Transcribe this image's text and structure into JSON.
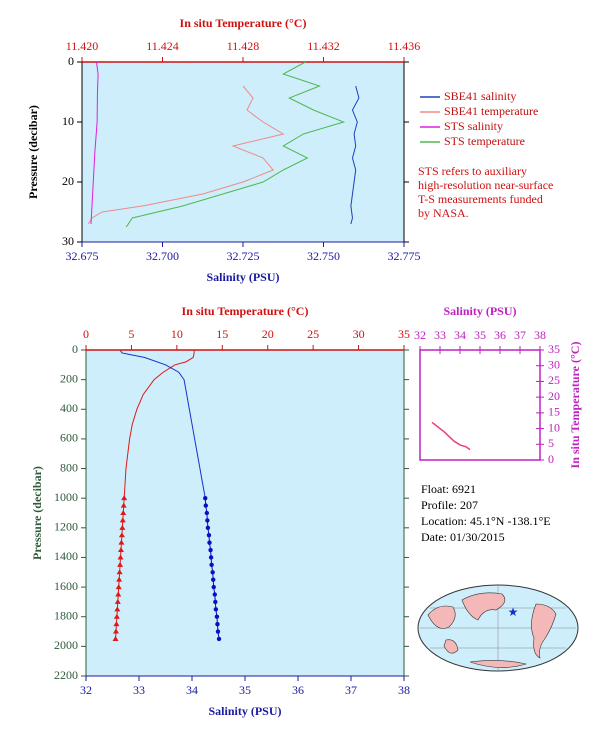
{
  "chart_data": [
    {
      "type": "profile",
      "ylabel": "Pressure (decibar)",
      "xlabel": "Salinity (PSU)",
      "x2label": "In situ Temperature (°C)",
      "xlim": [
        32.675,
        32.775
      ],
      "xticks": [
        32.675,
        {
          "value": 32.7,
          "label": "32.700"
        },
        32.725,
        {
          "value": 32.75,
          "label": "32.750"
        },
        32.775
      ],
      "x2lim": [
        11.42,
        11.436
      ],
      "x2ticks": [
        {
          "value": 11.42,
          "label": "11.420"
        },
        11.424,
        11.428,
        11.432,
        11.436
      ],
      "ylim": [
        0,
        30
      ],
      "yticks": [
        0,
        10,
        20,
        30
      ],
      "y_inverted": true,
      "xcolor": "#1a1aa0",
      "x2color": "#d01010",
      "ycolor": "#000000",
      "background": "#cdeefa",
      "series": [
        {
          "name": "SBE41 salinity",
          "color": "#2040c0",
          "axis": "x",
          "pressure": [
            4,
            6,
            8,
            10,
            12,
            14,
            16,
            18,
            20,
            22,
            24,
            26,
            27
          ],
          "values": [
            32.76,
            32.761,
            32.759,
            32.7605,
            32.7595,
            32.76,
            32.759,
            32.76,
            32.7595,
            32.759,
            32.7585,
            32.759,
            32.7585
          ]
        },
        {
          "name": "SBE41 temperature",
          "color": "#f08a8a",
          "axis": "x2",
          "pressure": [
            4,
            6,
            8,
            10,
            12,
            14,
            16,
            18,
            20,
            22,
            24,
            25,
            26,
            27
          ],
          "values": [
            11.428,
            11.4285,
            11.4282,
            11.429,
            11.43,
            11.4275,
            11.429,
            11.4295,
            11.428,
            11.426,
            11.423,
            11.421,
            11.4205,
            11.4203
          ]
        },
        {
          "name": "STS salinity",
          "color": "#e020e0",
          "axis": "x",
          "pressure": [
            0,
            2,
            5,
            10,
            15,
            20,
            25,
            27
          ],
          "values": [
            32.6795,
            32.68,
            32.6798,
            32.6797,
            32.679,
            32.6785,
            32.678,
            32.6778
          ]
        },
        {
          "name": "STS temperature",
          "color": "#50b850",
          "axis": "x2",
          "pressure": [
            0,
            2,
            4,
            6,
            8,
            10,
            12,
            14,
            16,
            18,
            20,
            22,
            24,
            26,
            27.5
          ],
          "values": [
            11.4311,
            11.43,
            11.4318,
            11.4303,
            11.4315,
            11.433,
            11.431,
            11.43,
            11.4312,
            11.43,
            11.429,
            11.427,
            11.425,
            11.4225,
            11.4222
          ]
        }
      ],
      "note": [
        "STS refers to auxiliary",
        "high-resolution near-surface",
        "T-S measurements funded",
        "by NASA."
      ]
    },
    {
      "type": "profile",
      "ylabel": "Pressure (decibar)",
      "xlabel": "Salinity (PSU)",
      "x2label": "In situ Temperature (°C)",
      "xlim": [
        32,
        38
      ],
      "xticks": [
        32,
        33,
        34,
        35,
        36,
        37,
        38
      ],
      "x2lim": [
        0,
        35
      ],
      "x2ticks": [
        0,
        5,
        10,
        15,
        20,
        25,
        30,
        35
      ],
      "ylim": [
        0,
        2200
      ],
      "yticks": [
        0,
        200,
        400,
        600,
        800,
        1000,
        1200,
        1400,
        1600,
        1800,
        2000,
        2200
      ],
      "y_inverted": true,
      "xcolor": "#1a1aa0",
      "x2color": "#d01010",
      "ycolor": "#2f5a3a",
      "background": "#cdeefa",
      "series": [
        {
          "color": "#e01818",
          "axis": "x2",
          "pressure": [
            0,
            20,
            50,
            80,
            100,
            150,
            200,
            300,
            400,
            500,
            600,
            700,
            800,
            900,
            1000
          ],
          "values": [
            11.9,
            11.9,
            11.8,
            11,
            9.8,
            8.5,
            7.5,
            6.3,
            5.6,
            5.1,
            4.8,
            4.6,
            4.4,
            4.3,
            4.2
          ]
        },
        {
          "color": "#e01818",
          "axis": "x2",
          "marker": "triangle",
          "pressure": [
            1000,
            1050,
            1100,
            1150,
            1200,
            1250,
            1300,
            1350,
            1400,
            1450,
            1500,
            1550,
            1600,
            1650,
            1700,
            1750,
            1800,
            1850,
            1900,
            1950
          ],
          "values": [
            4.2,
            4.15,
            4.1,
            4.05,
            4.0,
            3.95,
            3.9,
            3.85,
            3.8,
            3.75,
            3.7,
            3.65,
            3.6,
            3.55,
            3.5,
            3.45,
            3.4,
            3.35,
            3.3,
            3.25
          ]
        },
        {
          "color": "#1830d0",
          "axis": "x",
          "pressure": [
            5,
            20,
            50,
            100,
            150,
            200,
            300,
            400,
            500,
            600,
            700,
            800,
            900,
            1000
          ],
          "values": [
            32.65,
            32.68,
            33.1,
            33.5,
            33.75,
            33.85,
            33.9,
            33.95,
            34.0,
            34.05,
            34.1,
            34.15,
            34.2,
            34.25
          ]
        },
        {
          "color": "#0a10c0",
          "axis": "x",
          "marker": "dot",
          "pressure": [
            1000,
            1050,
            1100,
            1150,
            1200,
            1250,
            1300,
            1350,
            1400,
            1450,
            1500,
            1550,
            1600,
            1650,
            1700,
            1750,
            1800,
            1850,
            1900,
            1950
          ],
          "values": [
            34.25,
            34.26,
            34.28,
            34.29,
            34.3,
            34.32,
            34.33,
            34.35,
            34.36,
            34.37,
            34.39,
            34.4,
            34.41,
            34.43,
            34.44,
            34.45,
            34.47,
            34.48,
            34.49,
            34.51
          ]
        }
      ]
    },
    {
      "type": "line",
      "xlabel": "Salinity (PSU)",
      "ylabel": "In situ Temperature (°C)",
      "xlim": [
        32,
        38
      ],
      "xticks": [
        32,
        33,
        34,
        35,
        36,
        37,
        38
      ],
      "x_axis_position": "top",
      "ylim": [
        0,
        35
      ],
      "yticks": [
        0,
        5,
        10,
        15,
        20,
        25,
        30,
        35
      ],
      "y_axis_position": "right",
      "xcolor": "#c020c0",
      "ycolor": "#c020c0",
      "background": "#ffffff",
      "series": [
        {
          "color": "#f03c78",
          "x": [
            32.6,
            33.2,
            33.7,
            34.0,
            34.3,
            34.5
          ],
          "values": [
            12,
            9,
            6,
            4.8,
            4.2,
            3.3
          ]
        }
      ]
    }
  ],
  "info": [
    "Float:  6921",
    "Profile:  207",
    "Location:  45.1°N  -138.1°E",
    "Date:  01/30/2015"
  ]
}
